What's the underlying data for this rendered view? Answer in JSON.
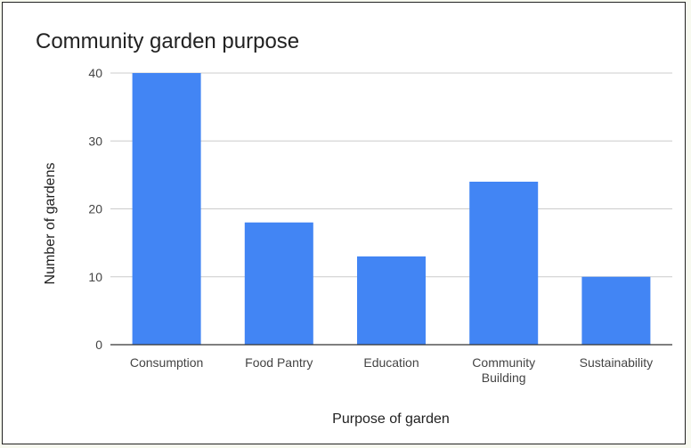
{
  "colors": {
    "bar": "#4285f4",
    "grid": "#cccccc",
    "axis": "#333333",
    "frame_background": "#ffffff",
    "page_background": "#f7f9ef"
  },
  "chart_data": {
    "type": "bar",
    "title": "Community garden purpose",
    "xlabel": "Purpose of garden",
    "ylabel": "Number of gardens",
    "categories": [
      [
        "Consumption"
      ],
      [
        "Food Pantry"
      ],
      [
        "Education"
      ],
      [
        "Community",
        "Building"
      ],
      [
        "Sustainability"
      ]
    ],
    "values": [
      40,
      18,
      13,
      24,
      10
    ],
    "ylim": [
      0,
      40
    ],
    "yticks": [
      0,
      10,
      20,
      30,
      40
    ],
    "grid": true,
    "legend": "none"
  }
}
